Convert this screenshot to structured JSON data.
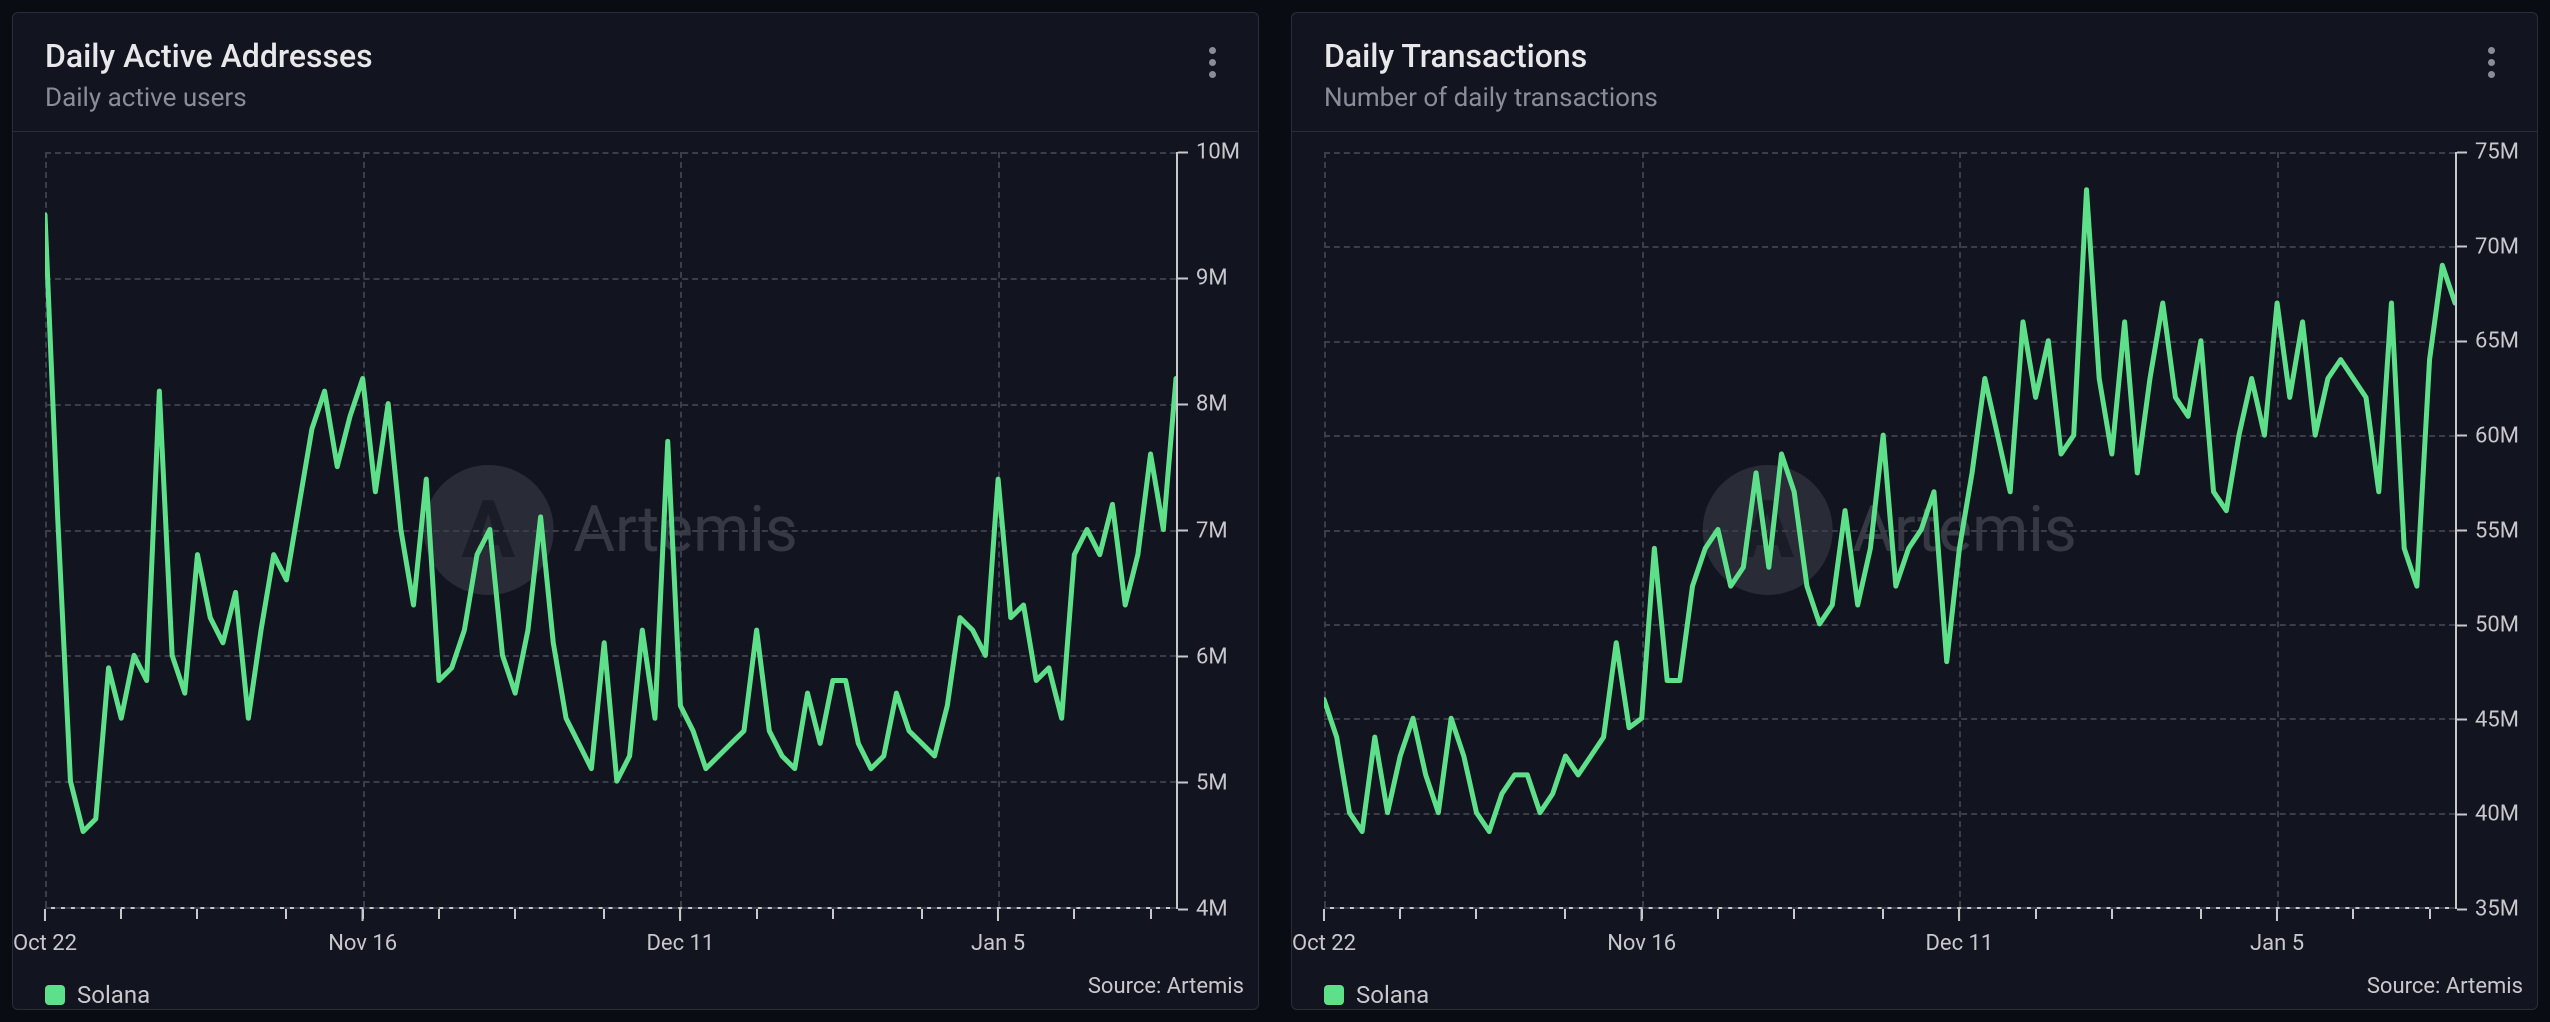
{
  "watermark": {
    "text": "Artemis",
    "logo_letter": "A"
  },
  "source_label": "Source: Artemis",
  "colors": {
    "panel_bg": "#12141f",
    "panel_border": "#2a2d3a",
    "grid": "#3a3d4a",
    "axis": "#c8c8cc",
    "text_primary": "#e8e8ea",
    "text_secondary": "#8a8d99",
    "series": "#5ee08a"
  },
  "panels": [
    {
      "id": "daily-active-addresses",
      "title": "Daily Active Addresses",
      "subtitle": "Daily active users",
      "type": "line",
      "legend": [
        {
          "label": "Solana",
          "color": "#5ee08a"
        }
      ],
      "y": {
        "min": 4,
        "max": 10,
        "step": 1,
        "ticks": [
          4,
          5,
          6,
          7,
          8,
          9,
          10
        ],
        "labels": [
          "4M",
          "5M",
          "6M",
          "7M",
          "8M",
          "9M",
          "10M"
        ]
      },
      "x": {
        "n": 90,
        "tick_idx": [
          0,
          25,
          50,
          75
        ],
        "tick_labels": [
          "Oct 22",
          "Nov 16",
          "Dec 11",
          "Jan 5"
        ],
        "minor_idx": [
          0,
          6,
          12,
          19,
          25,
          31,
          37,
          44,
          50,
          56,
          62,
          69,
          75,
          81,
          87
        ]
      },
      "series": [
        {
          "color": "#5ee08a",
          "values": [
            9.5,
            7.1,
            5.0,
            4.6,
            4.7,
            5.9,
            5.5,
            6.0,
            5.8,
            8.1,
            6.0,
            5.7,
            6.8,
            6.3,
            6.1,
            6.5,
            5.5,
            6.2,
            6.8,
            6.6,
            7.2,
            7.8,
            8.1,
            7.5,
            7.9,
            8.2,
            7.3,
            8.0,
            7.0,
            6.4,
            7.4,
            5.8,
            5.9,
            6.2,
            6.8,
            7.0,
            6.0,
            5.7,
            6.2,
            7.1,
            6.1,
            5.5,
            5.3,
            5.1,
            6.1,
            5.0,
            5.2,
            6.2,
            5.5,
            7.7,
            5.6,
            5.4,
            5.1,
            5.2,
            5.3,
            5.4,
            6.2,
            5.4,
            5.2,
            5.1,
            5.7,
            5.3,
            5.8,
            5.8,
            5.3,
            5.1,
            5.2,
            5.7,
            5.4,
            5.3,
            5.2,
            5.6,
            6.3,
            6.2,
            6.0,
            7.4,
            6.3,
            6.4,
            5.8,
            5.9,
            5.5,
            6.8,
            7.0,
            6.8,
            7.2,
            6.4,
            6.8,
            7.6,
            7.0,
            8.2
          ]
        }
      ]
    },
    {
      "id": "daily-transactions",
      "title": "Daily Transactions",
      "subtitle": "Number of daily transactions",
      "type": "line",
      "legend": [
        {
          "label": "Solana",
          "color": "#5ee08a"
        }
      ],
      "y": {
        "min": 35,
        "max": 75,
        "step": 5,
        "ticks": [
          35,
          40,
          45,
          50,
          55,
          60,
          65,
          70,
          75
        ],
        "labels": [
          "35M",
          "40M",
          "45M",
          "50M",
          "55M",
          "60M",
          "65M",
          "70M",
          "75M"
        ]
      },
      "x": {
        "n": 90,
        "tick_idx": [
          0,
          25,
          50,
          75
        ],
        "tick_labels": [
          "Oct 22",
          "Nov 16",
          "Dec 11",
          "Jan 5"
        ],
        "minor_idx": [
          0,
          6,
          12,
          19,
          25,
          31,
          37,
          44,
          50,
          56,
          62,
          69,
          75,
          81,
          87
        ]
      },
      "series": [
        {
          "color": "#5ee08a",
          "values": [
            46,
            44,
            40,
            39,
            44,
            40,
            43,
            45,
            42,
            40,
            45,
            43,
            40,
            39,
            41,
            42,
            42,
            40,
            41,
            43,
            42,
            43,
            44,
            49,
            44.5,
            45,
            54,
            47,
            47,
            52,
            54,
            55,
            52,
            53,
            58,
            53,
            59,
            57,
            52,
            50,
            51,
            56,
            51,
            54,
            60,
            52,
            54,
            55,
            57,
            48,
            54,
            58,
            63,
            60,
            57,
            66,
            62,
            65,
            59,
            60,
            73,
            63,
            59,
            66,
            58,
            63,
            67,
            62,
            61,
            65,
            57,
            56,
            60,
            63,
            60,
            67,
            62,
            66,
            60,
            63,
            64,
            63,
            62,
            57,
            67,
            54,
            52,
            64,
            69,
            67
          ]
        }
      ]
    }
  ]
}
